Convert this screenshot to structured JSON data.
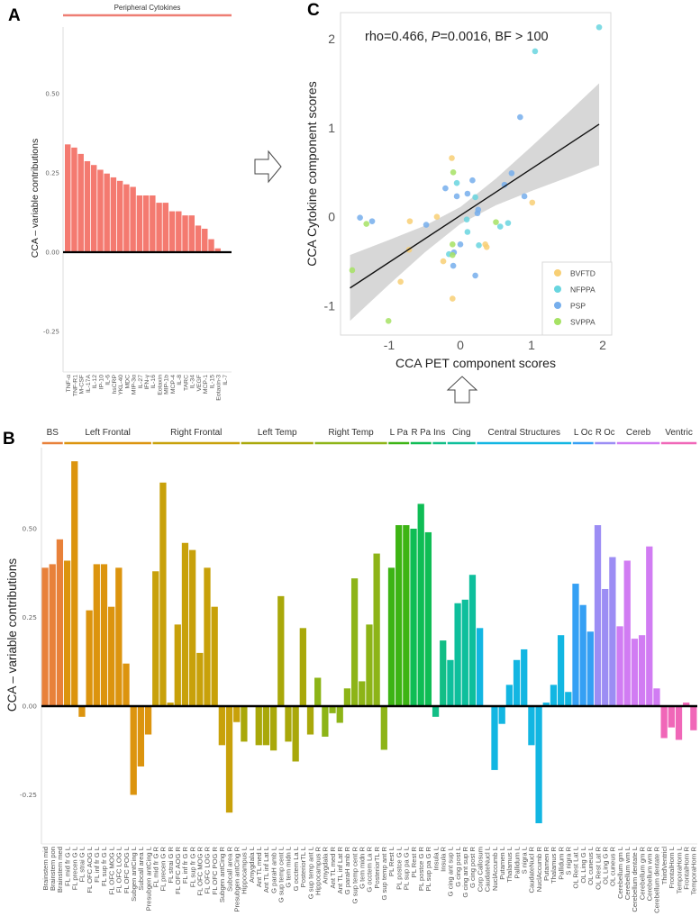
{
  "panels": {
    "a": "A",
    "b": "B",
    "c": "C"
  },
  "chart_data": [
    {
      "id": "A",
      "type": "bar",
      "group_label": "Peripheral Cytokines",
      "group_color": "#EE7E74",
      "bar_color": "#F47A70",
      "ylabel": "CCA – variable contributions",
      "ylim": [
        -0.3,
        0.72
      ],
      "yticks": [
        0.5,
        0.25,
        0.0,
        -0.25
      ],
      "ytick_labels": [
        "0.50",
        "0.25",
        "0.00",
        "-0.25"
      ],
      "categories": [
        "TNF-α",
        "TNF-R1",
        "M-CSF",
        "IL-17A",
        "IL-12",
        "IP-10",
        "IL-6",
        "hsCRP",
        "YKL-40",
        "MDC",
        "MIP-3α",
        "IL-27",
        "IFN-γ",
        "IL-16",
        "Eotaxin",
        "MIP-1b",
        "MCP-4",
        "IL-8",
        "TARC",
        "IL-34",
        "VEGF",
        "MCP-1",
        "IL-15",
        "Eotaxin-3",
        "IL-7"
      ],
      "values": [
        0.34,
        0.33,
        0.31,
        0.287,
        0.275,
        0.26,
        0.248,
        0.236,
        0.225,
        0.214,
        0.206,
        0.179,
        0.179,
        0.179,
        0.156,
        0.156,
        0.129,
        0.129,
        0.116,
        0.116,
        0.084,
        0.074,
        0.041,
        0.012,
        0.0
      ]
    },
    {
      "id": "B",
      "type": "bar",
      "ylabel": "CCA – variable contributions",
      "ylim": [
        -0.39,
        0.73
      ],
      "yticks": [
        0.5,
        0.25,
        0.0,
        -0.25
      ],
      "ytick_labels": [
        "0.50",
        "0.25",
        "0.00",
        "-0.25"
      ],
      "groups": [
        {
          "label": "BS",
          "color": "#E8813A",
          "bars": [
            [
              "Brainstem mid",
              0.39
            ],
            [
              "Brainstem pon",
              0.4
            ],
            [
              "Brainstem med",
              0.47
            ]
          ]
        },
        {
          "label": "Left Frontal",
          "color": "#DC940E",
          "bars": [
            [
              "FL mid fr G L",
              0.41
            ],
            [
              "FL precen G L",
              0.69
            ],
            [
              "FL strai G L",
              -0.03
            ],
            [
              "FL OFC AOG L",
              0.27
            ],
            [
              "FL inf fr G L",
              0.4
            ],
            [
              "FL sup fr G L",
              0.4
            ],
            [
              "FL OFC MOG L",
              0.28
            ],
            [
              "FL OFC LOG L",
              0.39
            ],
            [
              "FL OFC POG L",
              0.12
            ],
            [
              "Subgen antCing L",
              -0.25
            ],
            [
              "Subcall area L",
              -0.17
            ],
            [
              "Presubgen antCing L",
              -0.08
            ]
          ]
        },
        {
          "label": "Right Frontal",
          "color": "#C8A10A",
          "bars": [
            [
              "FL mid fr G R",
              0.38
            ],
            [
              "FL precen G R",
              0.63
            ],
            [
              "FL strai G R",
              0.01
            ],
            [
              "FL OFC AOG R",
              0.23
            ],
            [
              "FL inf fr G R",
              0.46
            ],
            [
              "FL sup fr G R",
              0.44
            ],
            [
              "FL OFC MOG R",
              0.15
            ],
            [
              "FL OFC LOG R",
              0.39
            ],
            [
              "FL OFC POG R",
              0.28
            ],
            [
              "Subgen antCing R",
              -0.11
            ],
            [
              "Subcall area R",
              -0.3
            ],
            [
              "Presubgen antCing R",
              -0.045
            ]
          ]
        },
        {
          "label": "Left Temp",
          "color": "#A9A80A",
          "bars": [
            [
              "Hippocampus L",
              -0.1
            ],
            [
              "Amygdala L",
              0.0
            ],
            [
              "Ant TL med L",
              -0.11
            ],
            [
              "Ant TL inf Lat L",
              -0.11
            ],
            [
              "G paraH amb L",
              -0.125
            ],
            [
              "G sup temp cent L",
              0.31
            ],
            [
              "G tem midn L",
              -0.1
            ],
            [
              "G occtem La L",
              -0.156
            ],
            [
              "PosteriorTL L",
              0.22
            ],
            [
              "G sup temp ant L",
              -0.08
            ]
          ]
        },
        {
          "label": "Right Temp",
          "color": "#8DB417",
          "bars": [
            [
              "Hippocampus R",
              0.08
            ],
            [
              "Amygdala R",
              -0.086
            ],
            [
              "Ant TL med R",
              -0.02
            ],
            [
              "Ant TL inf Lat R",
              -0.047
            ],
            [
              "G paraH amb R",
              0.05
            ],
            [
              "G sup temp cent R",
              0.36
            ],
            [
              "G tem midn R",
              0.07
            ],
            [
              "G occtem La R",
              0.23
            ],
            [
              "PosteriorTL R",
              0.43
            ],
            [
              "G sup temp ant R",
              -0.123
            ]
          ]
        },
        {
          "label": "L Pa",
          "color": "#3DB414",
          "bars": [
            [
              "PL Rest L",
              0.39
            ],
            [
              "PL postce G L",
              0.51
            ],
            [
              "PL sup pa G L",
              0.51
            ]
          ]
        },
        {
          "label": "R Pa",
          "color": "#0FBD55",
          "bars": [
            [
              "PL Rest R",
              0.5
            ],
            [
              "PL postce G R",
              0.57
            ],
            [
              "PL sup pa G R",
              0.49
            ]
          ]
        },
        {
          "label": "Ins",
          "color": "#12BE86",
          "bars": [
            [
              "Insula L",
              -0.03
            ],
            [
              "Insula R",
              0.185
            ]
          ]
        },
        {
          "label": "Cing",
          "color": "#0EBF9C",
          "bars": [
            [
              "G cing ant sup L",
              0.13
            ],
            [
              "G cing post L",
              0.29
            ],
            [
              "G cing ant sup R",
              0.3
            ],
            [
              "G cing post R",
              0.37
            ]
          ]
        },
        {
          "label": "Central Structures",
          "color": "#12B6E2",
          "bars": [
            [
              "Corp Callosum",
              0.22
            ],
            [
              "CaudateNucl L",
              0.0
            ],
            [
              "NuclAccumb L",
              -0.18
            ],
            [
              "Putamen L",
              -0.05
            ],
            [
              "Thalamus L",
              0.06
            ],
            [
              "Pallidum L",
              0.13
            ],
            [
              "S nigra L",
              0.16
            ],
            [
              "CaudateNucl R",
              -0.11
            ],
            [
              "NuclAccumb R",
              -0.33
            ],
            [
              "Putamen R",
              0.01
            ],
            [
              "Thalamus R",
              0.06
            ],
            [
              "Pallidum R",
              0.2
            ],
            [
              "S nigra R",
              0.04
            ]
          ]
        },
        {
          "label": "L Oc",
          "color": "#35A0F4",
          "bars": [
            [
              "OL Rest Lat L",
              0.345
            ],
            [
              "OL Ling G L",
              0.285
            ],
            [
              "OL cuneus L",
              0.21
            ]
          ]
        },
        {
          "label": "R Oc",
          "color": "#9C8DF4",
          "bars": [
            [
              "OL Rest Lat R",
              0.51
            ],
            [
              "OL Ling G R",
              0.33
            ],
            [
              "OL cuneus R",
              0.42
            ]
          ]
        },
        {
          "label": "Cereb",
          "color": "#D17CF3",
          "bars": [
            [
              "Cerebellum gm L",
              0.225
            ],
            [
              "Cerebellum wm L",
              0.41
            ],
            [
              "Cerebellum dentate L",
              0.19
            ],
            [
              "Cerebellum gm R",
              0.2
            ],
            [
              "Cerebellum wm R",
              0.45
            ],
            [
              "Cerebellum dentate R",
              0.05
            ]
          ]
        },
        {
          "label": "Ventric",
          "color": "#F067B8",
          "bars": [
            [
              "ThirdVentricl",
              -0.09
            ],
            [
              "FrontalHorn L",
              -0.06
            ],
            [
              "TemporaHorn L",
              -0.095
            ],
            [
              "FrontalHorn R",
              0.01
            ],
            [
              "TemporaHorn R",
              -0.068
            ]
          ]
        }
      ]
    },
    {
      "id": "C",
      "type": "scatter",
      "xlabel": "CCA PET component scores",
      "ylabel": "CCA Cytokine component scores",
      "xlim": [
        -1.7,
        2.1
      ],
      "ylim": [
        -1.35,
        2.3
      ],
      "xticks": [
        -1,
        0,
        1,
        2
      ],
      "yticks": [
        -1,
        0,
        1,
        2
      ],
      "annotation": {
        "pre": "rho=0.466, ",
        "italic": "P",
        "post": "=0.0016, BF > 100"
      },
      "legend_position": "bottom-right",
      "series": [
        {
          "name": "BVFTD",
          "color": "#F8CF74"
        },
        {
          "name": "NFPPA",
          "color": "#68D5DF"
        },
        {
          "name": "PSP",
          "color": "#76AEEC"
        },
        {
          "name": "SVPPA",
          "color": "#A6E264"
        }
      ],
      "points": [
        [
          -0.12,
          0.66,
          "BVFTD"
        ],
        [
          -0.1,
          0.5,
          "SVPPA"
        ],
        [
          -0.05,
          0.38,
          "NFPPA"
        ],
        [
          0.17,
          0.41,
          "PSP"
        ],
        [
          0.84,
          1.12,
          "PSP"
        ],
        [
          0.72,
          0.49,
          "PSP"
        ],
        [
          0.62,
          0.36,
          "PSP"
        ],
        [
          -0.21,
          0.32,
          "PSP"
        ],
        [
          1.95,
          2.13,
          "NFPPA"
        ],
        [
          1.05,
          1.86,
          "NFPPA"
        ],
        [
          -0.05,
          0.23,
          "PSP"
        ],
        [
          0.1,
          0.26,
          "PSP"
        ],
        [
          0.21,
          0.22,
          "NFPPA"
        ],
        [
          0.25,
          0.08,
          "PSP"
        ],
        [
          0.24,
          0.04,
          "PSP"
        ],
        [
          0.09,
          -0.03,
          "NFPPA"
        ],
        [
          -1.41,
          -0.01,
          "PSP"
        ],
        [
          -1.24,
          -0.05,
          "PSP"
        ],
        [
          -1.32,
          -0.08,
          "SVPPA"
        ],
        [
          -0.71,
          -0.05,
          "BVFTD"
        ],
        [
          -0.33,
          0.0,
          "BVFTD"
        ],
        [
          -0.48,
          -0.09,
          "PSP"
        ],
        [
          0.1,
          -0.17,
          "NFPPA"
        ],
        [
          0.5,
          -0.06,
          "SVPPA"
        ],
        [
          0.56,
          -0.11,
          "NFPPA"
        ],
        [
          0.67,
          -0.07,
          "NFPPA"
        ],
        [
          -0.11,
          -0.31,
          "SVPPA"
        ],
        [
          0.0,
          -0.31,
          "PSP"
        ],
        [
          0.26,
          -0.32,
          "NFPPA"
        ],
        [
          0.35,
          -0.31,
          "BVFTD"
        ],
        [
          0.37,
          -0.34,
          "BVFTD"
        ],
        [
          -0.72,
          -0.37,
          "BVFTD"
        ],
        [
          -0.16,
          -0.42,
          "NFPPA"
        ],
        [
          -0.09,
          -0.4,
          "PSP"
        ],
        [
          -0.11,
          -0.43,
          "SVPPA"
        ],
        [
          -0.24,
          -0.5,
          "BVFTD"
        ],
        [
          -0.1,
          -0.55,
          "PSP"
        ],
        [
          -1.52,
          -0.6,
          "SVPPA"
        ],
        [
          0.21,
          -0.66,
          "PSP"
        ],
        [
          -0.84,
          -0.73,
          "BVFTD"
        ],
        [
          -0.11,
          -0.92,
          "BVFTD"
        ],
        [
          -1.01,
          -1.17,
          "SVPPA"
        ],
        [
          0.9,
          0.23,
          "PSP"
        ],
        [
          1.01,
          0.16,
          "BVFTD"
        ]
      ],
      "fit_line": {
        "x": [
          -1.55,
          1.95
        ],
        "y": [
          -0.8,
          1.04
        ]
      },
      "ci_band": {
        "x": [
          -1.55,
          -1,
          -0.5,
          0,
          0.5,
          1,
          1.5,
          1.95
        ],
        "lower": [
          -1.17,
          -0.76,
          -0.4,
          -0.08,
          0.13,
          0.29,
          0.44,
          0.58
        ],
        "upper": [
          -0.43,
          -0.26,
          -0.1,
          0.11,
          0.43,
          0.79,
          1.16,
          1.5
        ]
      }
    }
  ]
}
